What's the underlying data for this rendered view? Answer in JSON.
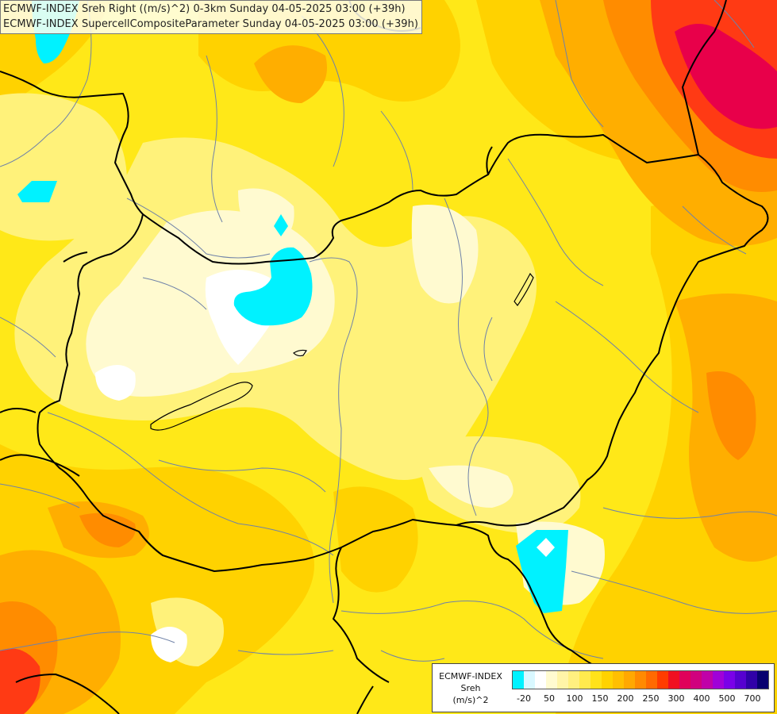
{
  "header": {
    "line1": "ECMWF-INDEX Sreh Right ((m/s)^2) 0-3km Sunday 04-05-2025 03:00 (+39h)",
    "line2": "ECMWF-INDEX SupercellCompositeParameter Sunday 04-05-2025 03:00 (+39h)"
  },
  "legend": {
    "title_line1": "ECMWF-INDEX",
    "title_line2": "Sreh",
    "title_line3": "(m/s)^2",
    "colors": [
      "#00f2ff",
      "#d9f8ff",
      "#ffffff",
      "#fffbd0",
      "#fff5a8",
      "#fff080",
      "#ffea4e",
      "#ffe21a",
      "#ffd200",
      "#ffbf00",
      "#ffa800",
      "#ff8a00",
      "#ff6a00",
      "#ff3c00",
      "#f01020",
      "#e0005a",
      "#d0007e",
      "#c000a8",
      "#a000d8",
      "#7a00e8",
      "#5600d0",
      "#3000a8",
      "#080070"
    ],
    "tick_labels": [
      "-20",
      "50",
      "100",
      "150",
      "200",
      "250",
      "300",
      "400",
      "500",
      "700"
    ]
  },
  "map": {
    "colors": {
      "cyan": "#00f2ff",
      "white": "#ffffff",
      "pale": "#fffad0",
      "light_yellow": "#fff27a",
      "yellow": "#ffe818",
      "gold": "#ffd200",
      "orange": "#ffae00",
      "dark_orange": "#ff8c00",
      "red": "#ff3a14",
      "crimson": "#e8004a",
      "border": "#000000",
      "river": "#6f82a8"
    }
  }
}
